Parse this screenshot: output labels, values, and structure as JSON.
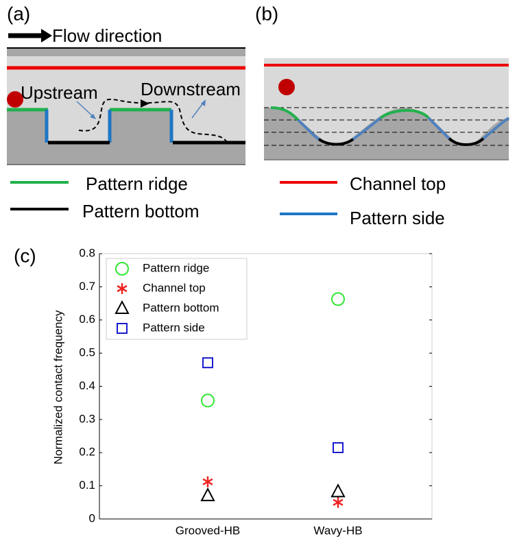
{
  "panels": {
    "a": {
      "label": "(a)",
      "flow_label": "Flow direction",
      "upstream": "Upstream",
      "downstream": "Downstream"
    },
    "b": {
      "label": "(b)"
    },
    "c": {
      "label": "(c)"
    }
  },
  "legend": [
    "Pattern ridge",
    "Pattern bottom",
    "Channel top",
    "Pattern side"
  ],
  "chart_data": {
    "type": "scatter",
    "y_label": "Normalized contact frequency",
    "categories": [
      "Grooved-HB",
      "Wavy-HB"
    ],
    "series": [
      {
        "name": "Pattern ridge",
        "color": "#33e633",
        "marker": "circle",
        "values": [
          0.357,
          0.663
        ]
      },
      {
        "name": "Channel top",
        "color": "#ee2222",
        "marker": "asterisk",
        "values": [
          0.112,
          0.05
        ]
      },
      {
        "name": "Pattern bottom",
        "color": "#000000",
        "marker": "triangle",
        "values": [
          0.07,
          0.082
        ]
      },
      {
        "name": "Pattern side",
        "color": "#1a1acc",
        "marker": "square",
        "values": [
          0.471,
          0.215
        ]
      }
    ],
    "ylim": [
      0,
      0.8
    ],
    "yticks": [
      0,
      0.1,
      0.2,
      0.3,
      0.4,
      0.5,
      0.6,
      0.7,
      0.8
    ]
  }
}
